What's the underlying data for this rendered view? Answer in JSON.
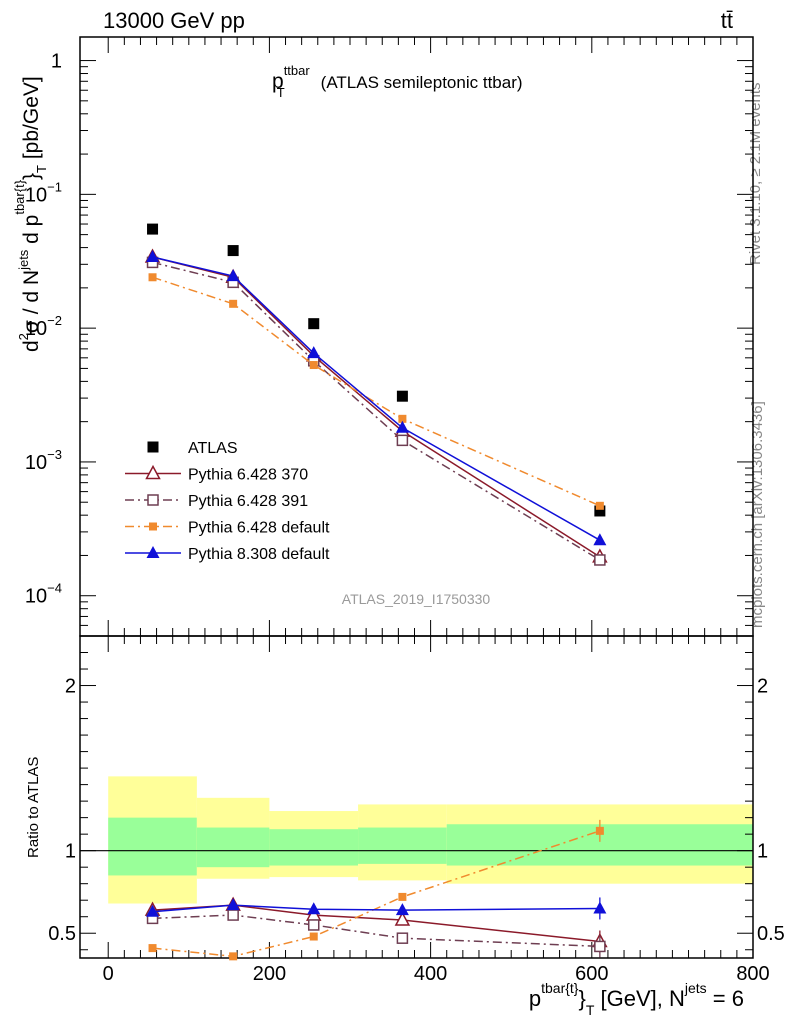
{
  "header": {
    "left": "13000 GeV pp",
    "right": "tt̄"
  },
  "side_labels": {
    "rivet": "Rivet 3.1.10, ≥ 2.1M events",
    "mcplots": "mcplots.cern.ch [arXiv:1306.3436]"
  },
  "chart_data": [
    {
      "type": "line",
      "title": "p",
      "title_sup": "ttbar",
      "title_sub": "T",
      "title_rest": "(ATLAS semileptonic ttbar)",
      "ylabel": "d²σ / d N^jets d p^tbar{t}_T [pb/GeV]",
      "ylabel_parts": {
        "a": "d",
        "a_sup": "2",
        "b": "σ  /  d N",
        "b_sup": "jets",
        "c": " d p",
        "c_sup": "tbar{t}",
        "d": "}",
        "d_sub": "T",
        "e": " [pb/GeV]"
      },
      "yscale": "log",
      "ylim": [
        5e-05,
        1.5
      ],
      "xlim": [
        -35,
        800
      ],
      "y_tick_labels": [
        {
          "base": "1",
          "exp": "",
          "value": 1
        },
        {
          "base": "10",
          "exp": "−1",
          "value": 0.1
        },
        {
          "base": "10",
          "exp": "−2",
          "value": 0.01
        },
        {
          "base": "10",
          "exp": "−3",
          "value": 0.001
        },
        {
          "base": "10",
          "exp": "−4",
          "value": 0.0001
        }
      ],
      "watermark": "ATLAS_2019_I1750330",
      "x": [
        55,
        155,
        255,
        365,
        610
      ],
      "series": [
        {
          "name": "ATLAS",
          "color": "#000000",
          "marker": "square-filled",
          "line": "none",
          "values": [
            0.055,
            0.038,
            0.0108,
            0.0031,
            0.00043
          ]
        },
        {
          "name": "Pythia 6.428 370",
          "color": "#8b1a2a",
          "marker": "triangle-open",
          "line": "solid",
          "values": [
            0.034,
            0.024,
            0.0062,
            0.0017,
            0.000195
          ]
        },
        {
          "name": "Pythia 6.428 391",
          "color": "#6e3e52",
          "marker": "square-open",
          "line": "dashdot",
          "values": [
            0.031,
            0.022,
            0.0057,
            0.00145,
            0.000185
          ]
        },
        {
          "name": "Pythia 6.428 default",
          "color": "#f08a2e",
          "marker": "square-small-filled",
          "line": "dashdot",
          "values": [
            0.024,
            0.0152,
            0.0053,
            0.0021,
            0.00047
          ]
        },
        {
          "name": "Pythia 8.308 default",
          "color": "#1010d8",
          "marker": "triangle-filled",
          "line": "solid",
          "values": [
            0.034,
            0.0245,
            0.0065,
            0.0018,
            0.00026
          ]
        }
      ]
    },
    {
      "type": "line",
      "ylabel": "Ratio to ATLAS",
      "xlabel_parts": {
        "a": "p",
        "a_sup": "tbar{t}",
        "b": "}",
        "b_sub": "T",
        "c": " [GeV], N",
        "c_sup": "jets",
        "d": " = 6"
      },
      "ylim": [
        0.35,
        2.3
      ],
      "xlim": [
        -35,
        800
      ],
      "y_tick_labels": [
        "0.5",
        "1",
        "2"
      ],
      "y_tick_values": [
        0.5,
        1,
        2
      ],
      "x_tick_labels": [
        "0",
        "200",
        "400",
        "600",
        "800"
      ],
      "x_tick_values": [
        0,
        200,
        400,
        600,
        800
      ],
      "reference_line": 1,
      "bands": [
        {
          "x0": 0,
          "x1": 110,
          "inner": [
            0.85,
            1.2
          ],
          "outer": [
            0.68,
            1.45
          ]
        },
        {
          "x0": 110,
          "x1": 200,
          "inner": [
            0.9,
            1.14
          ],
          "outer": [
            0.83,
            1.32
          ]
        },
        {
          "x0": 200,
          "x1": 310,
          "inner": [
            0.91,
            1.13
          ],
          "outer": [
            0.84,
            1.24
          ]
        },
        {
          "x0": 310,
          "x1": 420,
          "inner": [
            0.92,
            1.14
          ],
          "outer": [
            0.82,
            1.28
          ]
        },
        {
          "x0": 420,
          "x1": 800,
          "inner": [
            0.91,
            1.16
          ],
          "outer": [
            0.8,
            1.28
          ]
        }
      ],
      "band_colors": {
        "inner": "#99ff99",
        "outer": "#ffff99"
      },
      "x": [
        55,
        155,
        255,
        365,
        610
      ],
      "series": [
        {
          "name": "Pythia 6.428 370",
          "color": "#8b1a2a",
          "marker": "triangle-open",
          "line": "solid",
          "values": [
            0.64,
            0.67,
            0.61,
            0.58,
            0.45
          ]
        },
        {
          "name": "Pythia 6.428 391",
          "color": "#6e3e52",
          "marker": "square-open",
          "line": "dashdot",
          "values": [
            0.59,
            0.61,
            0.55,
            0.47,
            0.42
          ]
        },
        {
          "name": "Pythia 6.428 default",
          "color": "#f08a2e",
          "marker": "square-small-filled",
          "line": "dashdot",
          "values": [
            0.41,
            0.36,
            0.48,
            0.72,
            1.12
          ]
        },
        {
          "name": "Pythia 8.308 default",
          "color": "#1010d8",
          "marker": "triangle-filled",
          "line": "solid",
          "values": [
            0.63,
            0.67,
            0.645,
            0.64,
            0.65
          ]
        }
      ]
    }
  ]
}
